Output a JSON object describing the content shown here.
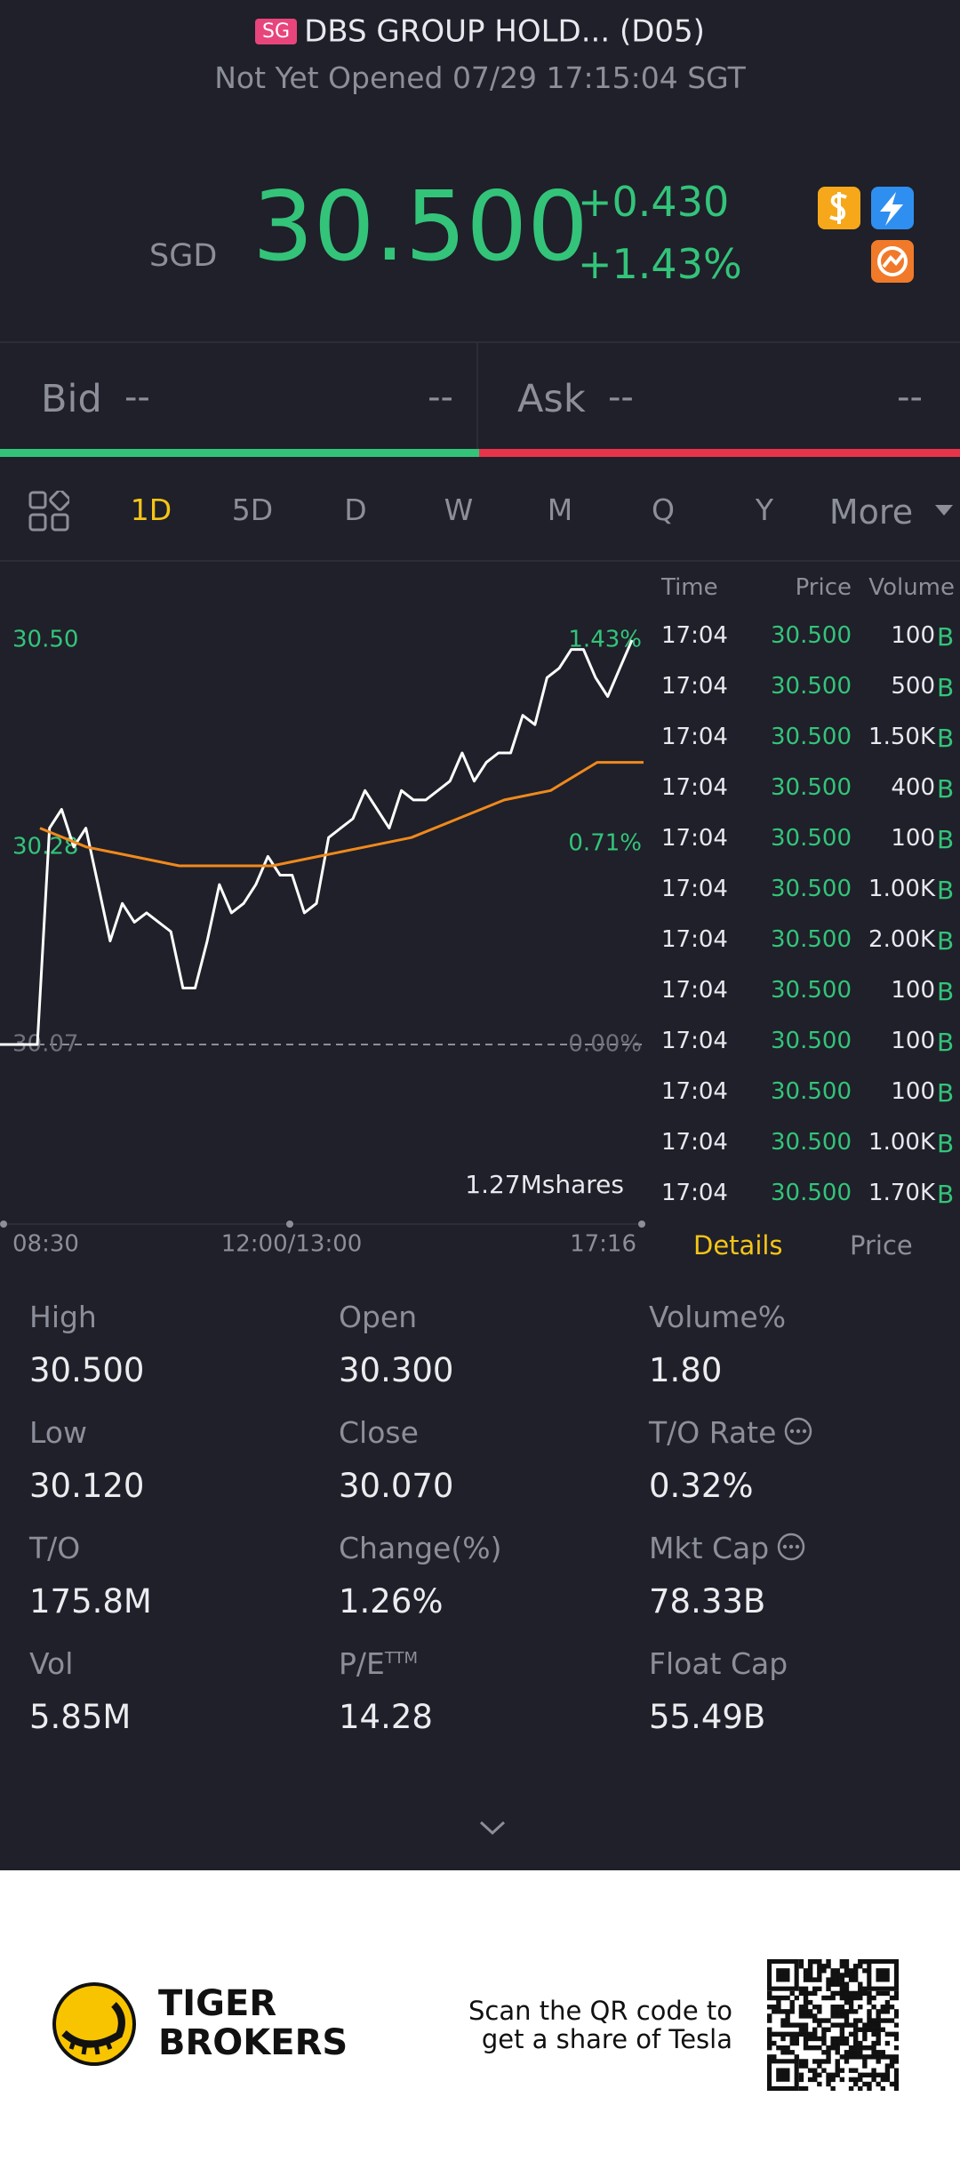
{
  "header": {
    "market_badge": "SG",
    "name": "DBS GROUP HOLD... (D05)",
    "status": "Not Yet Opened 07/29 17:15:04 SGT"
  },
  "quote": {
    "currency": "SGD",
    "price": "30.500",
    "change": "+0.430",
    "change_pct": "+1.43%"
  },
  "bid": {
    "label": "Bid",
    "price": "--",
    "size": "--"
  },
  "ask": {
    "label": "Ask",
    "price": "--",
    "size": "--"
  },
  "tabs": {
    "items": [
      "1D",
      "5D",
      "D",
      "W",
      "M",
      "Q",
      "Y",
      "More"
    ],
    "active": 0
  },
  "chart": {
    "type": "line",
    "ylim": [
      30.07,
      30.5
    ],
    "yticks": [
      {
        "value": 30.5,
        "label": "30.50"
      },
      {
        "value": 30.28,
        "label": "30.28"
      },
      {
        "value": 30.07,
        "label": "30.07"
      }
    ],
    "y2lim": [
      0,
      1.43
    ],
    "y2ticks": [
      {
        "value": 1.43,
        "label": "1.43%"
      },
      {
        "value": 0.71,
        "label": "0.71%"
      },
      {
        "value": 0,
        "label": "0.00%"
      }
    ],
    "xticks": [
      "08:30",
      "12:00/13:00",
      "17:16"
    ],
    "series": [
      {
        "color": "#ffffff",
        "values": [
          30.07,
          30.07,
          30.3,
          30.32,
          30.28,
          30.3,
          30.24,
          30.18,
          30.22,
          30.2,
          30.21,
          30.2,
          30.19,
          30.13,
          30.13,
          30.18,
          30.24,
          30.21,
          30.22,
          30.24,
          30.27,
          30.25,
          30.25,
          30.21,
          30.22,
          30.29,
          30.3,
          30.31,
          30.34,
          30.32,
          30.3,
          30.34,
          30.33,
          30.33,
          30.34,
          30.35,
          30.38,
          30.35,
          30.37,
          30.38,
          30.38,
          30.42,
          30.41,
          30.46,
          30.47,
          30.49,
          30.49,
          30.46,
          30.44,
          30.47,
          30.5
        ]
      },
      {
        "color": "#f0891d",
        "values": [
          30.3,
          30.28,
          30.27,
          30.26,
          30.26,
          30.26,
          30.27,
          30.28,
          30.29,
          30.31,
          30.33,
          30.34,
          30.37,
          30.37
        ]
      }
    ],
    "volume_label": "1.27Mshares"
  },
  "trades": {
    "columns": [
      "Time",
      "Price",
      "Volume"
    ],
    "rows": [
      [
        "17:04",
        "30.500",
        "100",
        "B"
      ],
      [
        "17:04",
        "30.500",
        "500",
        "B"
      ],
      [
        "17:04",
        "30.500",
        "1.50K",
        "B"
      ],
      [
        "17:04",
        "30.500",
        "400",
        "B"
      ],
      [
        "17:04",
        "30.500",
        "100",
        "B"
      ],
      [
        "17:04",
        "30.500",
        "1.00K",
        "B"
      ],
      [
        "17:04",
        "30.500",
        "2.00K",
        "B"
      ],
      [
        "17:04",
        "30.500",
        "100",
        "B"
      ],
      [
        "17:04",
        "30.500",
        "100",
        "B"
      ],
      [
        "17:04",
        "30.500",
        "100",
        "B"
      ],
      [
        "17:04",
        "30.500",
        "1.00K",
        "B"
      ],
      [
        "17:04",
        "30.500",
        "1.70K",
        "B"
      ]
    ],
    "tabs": [
      "Details",
      "Price"
    ]
  },
  "stats": [
    {
      "label": "High",
      "value": "30.500"
    },
    {
      "label": "Open",
      "value": "30.300"
    },
    {
      "label": "Volume%",
      "value": "1.80"
    },
    {
      "label": "Low",
      "value": "30.120"
    },
    {
      "label": "Close",
      "value": "30.070"
    },
    {
      "label": "T/O Rate",
      "value": "0.32%",
      "info": true
    },
    {
      "label": "T/O",
      "value": "175.8M"
    },
    {
      "label": "Change(%)",
      "value": "1.26%"
    },
    {
      "label": "Mkt Cap",
      "value": "78.33B",
      "info": true
    },
    {
      "label": "Vol",
      "value": "5.85M"
    },
    {
      "label": "P/E",
      "sup": "TTM",
      "value": "14.28"
    },
    {
      "label": "Float Cap",
      "value": "55.49B"
    }
  ],
  "footer": {
    "brand": [
      "TIGER",
      "BROKERS"
    ],
    "cta": [
      "Scan the QR code to",
      "get a share of Tesla"
    ]
  }
}
